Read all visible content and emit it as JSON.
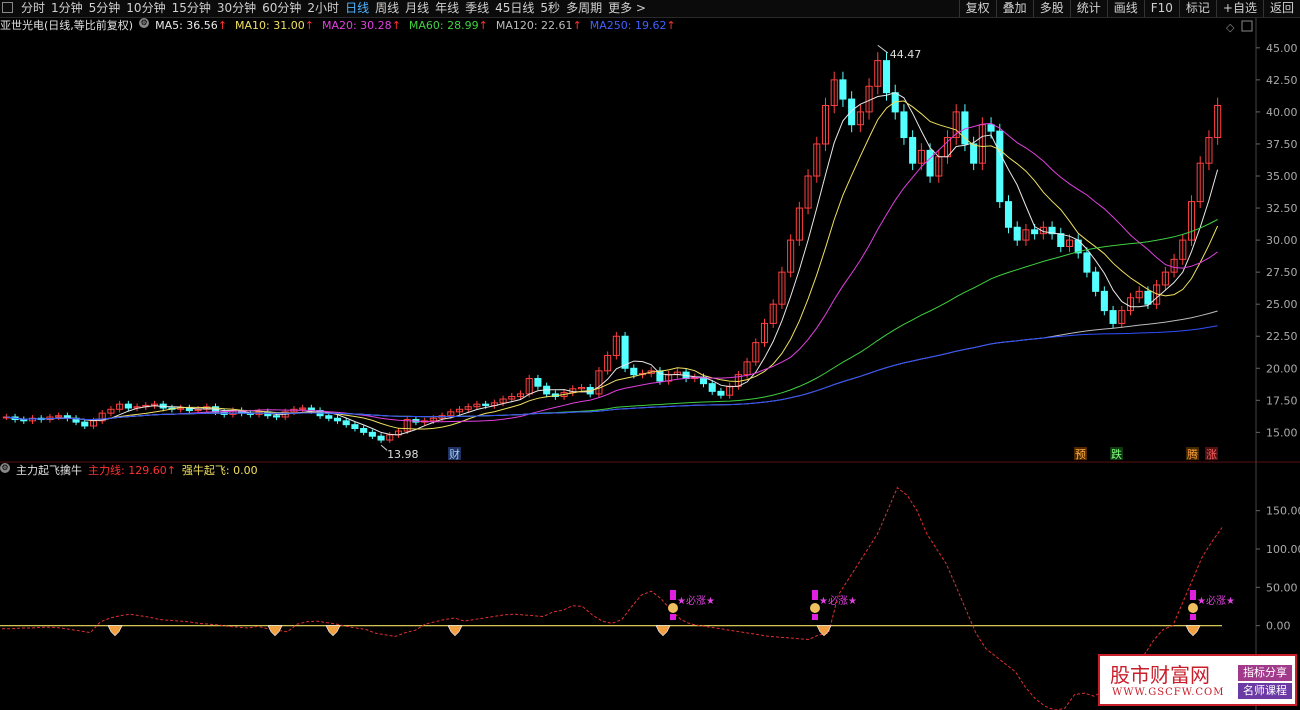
{
  "toolbar": {
    "periods": [
      "分时",
      "1分钟",
      "5分钟",
      "10分钟",
      "15分钟",
      "30分钟",
      "60分钟",
      "2小时",
      "日线",
      "周线",
      "月线",
      "年线",
      "季线",
      "45日线",
      "5秒",
      "多周期",
      "更多 >"
    ],
    "active": "日线",
    "actions": [
      "复权",
      "叠加",
      "多股",
      "统计",
      "画线",
      "F10",
      "标记",
      "+自选",
      "返回"
    ]
  },
  "title": {
    "stock": "亚世光电(日线,等比前复权)",
    "ma": [
      {
        "label": "MA5: 36.56",
        "color": "#e8e8e8"
      },
      {
        "label": "MA10: 31.00",
        "color": "#f0e060"
      },
      {
        "label": "MA20: 30.28",
        "color": "#e040e0"
      },
      {
        "label": "MA60: 28.99",
        "color": "#40d040"
      },
      {
        "label": "MA120: 22.61",
        "color": "#bbbbbb"
      },
      {
        "label": "MA250: 19.62",
        "color": "#4060ff"
      }
    ],
    "up_mark": "↑"
  },
  "indicator": {
    "name": "主力起飞擒牛",
    "line1": "主力线: 129.60",
    "line2": "强牛起飞: 0.00",
    "up_mark": "↑"
  },
  "labels": {
    "high": "44.47",
    "low": "13.98",
    "cai": "财",
    "yu": "预",
    "die": "跌",
    "teng": "腾",
    "zhang": "涨",
    "bizhang": "★必涨★"
  },
  "watermark": {
    "title": "股市财富网",
    "url": "WWW.GSCFW.COM",
    "tag1": "指标分享",
    "tag2": "名师课程"
  },
  "chart_data": [
    {
      "type": "candlestick",
      "title": "亚世光电(日线,等比前复权)",
      "ylim": [
        13,
        46
      ],
      "yticks": [
        "45.00",
        "42.50",
        "40.00",
        "37.50",
        "35.00",
        "32.50",
        "30.00",
        "27.50",
        "25.00",
        "22.50",
        "20.00",
        "17.50",
        "15.00"
      ],
      "series_close": [
        16.2,
        16.0,
        15.9,
        16.1,
        16.0,
        16.2,
        16.3,
        16.1,
        15.8,
        15.5,
        15.9,
        16.5,
        16.8,
        17.2,
        16.9,
        17.0,
        17.1,
        17.2,
        16.9,
        16.8,
        16.9,
        16.7,
        16.8,
        17.0,
        16.6,
        16.4,
        16.7,
        16.5,
        16.4,
        16.6,
        16.3,
        16.2,
        16.6,
        16.8,
        16.9,
        16.7,
        16.3,
        16.1,
        15.9,
        15.6,
        15.3,
        15.0,
        14.7,
        14.4,
        14.8,
        15.1,
        16.0,
        15.8,
        15.9,
        16.1,
        16.3,
        16.6,
        16.8,
        17.0,
        17.2,
        17.1,
        17.3,
        17.6,
        17.8,
        18.0,
        19.2,
        18.6,
        18.0,
        17.8,
        18.1,
        18.4,
        18.5,
        18.0,
        19.8,
        21.0,
        22.5,
        20.0,
        19.5,
        19.6,
        19.8,
        19.0,
        19.5,
        19.7,
        19.2,
        19.3,
        18.8,
        18.2,
        17.9,
        18.6,
        19.5,
        20.5,
        22.0,
        23.5,
        25.0,
        27.5,
        30.0,
        32.5,
        35.0,
        37.5,
        40.5,
        42.5,
        41.0,
        39.0,
        40.0,
        42.0,
        44.0,
        41.5,
        40.0,
        38.0,
        36.0,
        37.0,
        35.0,
        36.5,
        38.0,
        40.0,
        37.5,
        36.0,
        39.0,
        38.5,
        33.0,
        31.0,
        30.0,
        30.8,
        30.5,
        31.0,
        30.5,
        29.5,
        30.0,
        29.0,
        27.5,
        26.0,
        24.5,
        23.5,
        24.5,
        25.5,
        26.0,
        25.0,
        26.5,
        27.5,
        28.5,
        30.0,
        33.0,
        36.0,
        38.0,
        40.5
      ],
      "annotations": [
        "44.47",
        "13.98"
      ]
    },
    {
      "type": "line",
      "title": "主力起飞擒牛",
      "ylim": [
        -110,
        190
      ],
      "yticks": [
        "150.00",
        "100.00",
        "50.00",
        "0.00"
      ],
      "series": [
        {
          "name": "主力线",
          "values": [
            -4,
            -4,
            -3,
            -3,
            -2,
            -2,
            -3,
            -5,
            -7,
            -9,
            5,
            10,
            13,
            15,
            13,
            11,
            8,
            7,
            6,
            5,
            3,
            2,
            1,
            -1,
            -2,
            -3,
            -1,
            -4,
            -6,
            -8,
            2,
            5,
            6,
            4,
            2,
            -1,
            -3,
            -5,
            -10,
            -12,
            -14,
            -9,
            -6,
            2,
            5,
            8,
            10,
            6,
            8,
            10,
            12,
            14,
            15,
            14,
            13,
            12,
            18,
            20,
            26,
            25,
            14,
            6,
            3,
            8,
            25,
            40,
            45,
            35,
            20,
            8,
            2,
            0,
            -2,
            -4,
            -6,
            -8,
            -10,
            -12,
            -14,
            -15,
            -16,
            -17,
            -18,
            -12,
            -10,
            40,
            60,
            80,
            100,
            120,
            150,
            180,
            170,
            150,
            120,
            100,
            80,
            50,
            20,
            -10,
            -30,
            -40,
            -50,
            -60,
            -80,
            -95,
            -105,
            -110,
            -108,
            -90,
            -88,
            -92,
            -85,
            -80,
            -75,
            -60,
            -40,
            -20,
            -5,
            0,
            30,
            60,
            90,
            110,
            128
          ]
        },
        {
          "name": "强牛起飞",
          "values": [
            0
          ]
        }
      ]
    }
  ]
}
